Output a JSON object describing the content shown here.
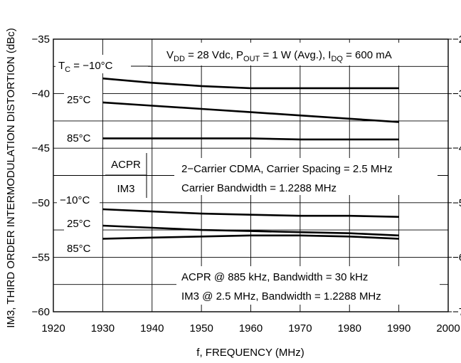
{
  "chart_data": {
    "type": "line",
    "xlabel": "f, FREQUENCY (MHz)",
    "ylabel": "IM3, THIRD ORDER INTERMODULATION DISTORTION (dBc)",
    "xlim": [
      1920,
      2000
    ],
    "ylim": [
      -60,
      -35
    ],
    "x_ticks": [
      "1920",
      "1930",
      "1940",
      "1950",
      "1960",
      "1970",
      "1980",
      "1990",
      "2000"
    ],
    "y_ticks": [
      "−35",
      "−40",
      "−45",
      "−50",
      "−55",
      "−60"
    ],
    "right_ticks": [
      "−2",
      "−3",
      "−4",
      "−5",
      "−6",
      "−7"
    ],
    "grid": true,
    "series": [
      {
        "group": "ACPR",
        "x": [
          1930,
          1940,
          1950,
          1960,
          1970,
          1980,
          1990
        ],
        "y": [
          -38.6,
          -39.0,
          -39.3,
          -39.5,
          -39.5,
          -39.5,
          -39.5
        ]
      },
      {
        "group": "ACPR",
        "x": [
          1930,
          1940,
          1950,
          1960,
          1970,
          1980,
          1990
        ],
        "y": [
          -40.8,
          -41.1,
          -41.4,
          -41.7,
          -42.0,
          -42.3,
          -42.6
        ]
      },
      {
        "group": "ACPR",
        "x": [
          1930,
          1940,
          1950,
          1960,
          1970,
          1980,
          1990
        ],
        "y": [
          -44.1,
          -44.1,
          -44.1,
          -44.1,
          -44.2,
          -44.2,
          -44.2
        ]
      },
      {
        "group": "IM3",
        "x": [
          1930,
          1940,
          1950,
          1960,
          1970,
          1980,
          1990
        ],
        "y": [
          -50.6,
          -50.8,
          -51.0,
          -51.1,
          -51.2,
          -51.2,
          -51.3
        ]
      },
      {
        "group": "IM3",
        "x": [
          1930,
          1940,
          1950,
          1960,
          1970,
          1980,
          1990
        ],
        "y": [
          -52.1,
          -52.3,
          -52.5,
          -52.6,
          -52.7,
          -52.8,
          -53.0
        ]
      },
      {
        "group": "IM3",
        "x": [
          1930,
          1940,
          1950,
          1960,
          1970,
          1980,
          1990
        ],
        "y": [
          -53.3,
          -53.2,
          -53.1,
          -53.0,
          -53.0,
          -53.1,
          -53.3
        ]
      }
    ],
    "curve_labels": [
      "T",
      "C",
      " = −10°C",
      "25°C",
      "85°C",
      "−10°C",
      "25°C",
      "85°C"
    ],
    "group_labels": {
      "acpr": "ACPR",
      "im3": "IM3"
    },
    "conditions": {
      "v": "V",
      "dd": "DD",
      "eq1": " = 28 Vdc, P",
      "out": "OUT",
      "eq2": " = 1 W (Avg.), I",
      "dq": "DQ",
      "eq3": " = 600 mA"
    },
    "annotations": {
      "cdma_line1": "2−Carrier CDMA, Carrier Spacing = 2.5 MHz",
      "cdma_line2": "Carrier Bandwidth = 1.2288 MHz",
      "meas_line1": "ACPR @ 885 kHz, Bandwidth = 30 kHz",
      "meas_line2": "IM3 @ 2.5 MHz, Bandwidth = 1.2288 MHz"
    }
  }
}
